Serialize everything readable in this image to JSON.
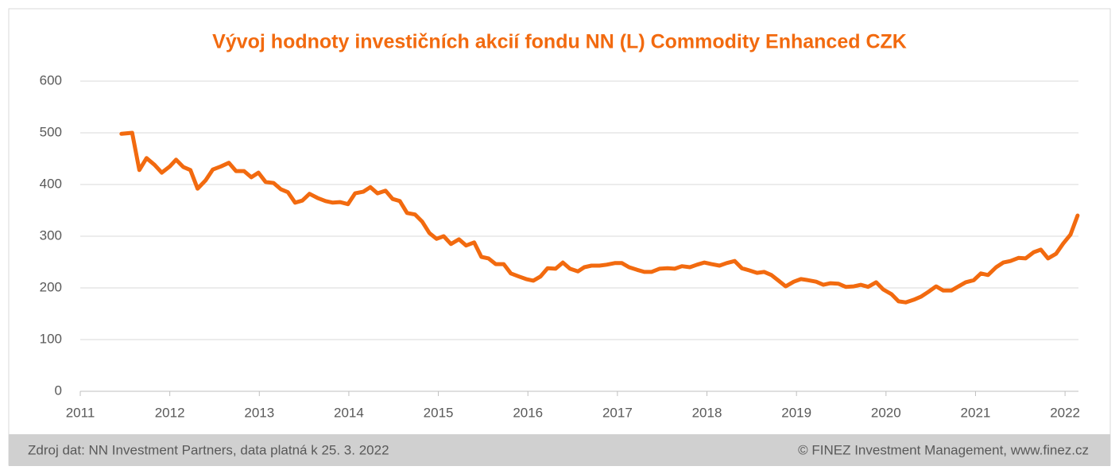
{
  "chart_data": {
    "type": "line",
    "title": "Vývoj hodnoty investičních akcií fondu NN (L) Commodity Enhanced CZK",
    "x": [
      2011.46,
      2011.58,
      2011.66,
      2011.74,
      2011.83,
      2011.91,
      2012.0,
      2012.07,
      2012.15,
      2012.23,
      2012.31,
      2012.4,
      2012.48,
      2012.57,
      2012.66,
      2012.74,
      2012.83,
      2012.91,
      2012.99,
      2013.07,
      2013.16,
      2013.24,
      2013.32,
      2013.4,
      2013.48,
      2013.56,
      2013.65,
      2013.74,
      2013.82,
      2013.9,
      2013.99,
      2014.07,
      2014.16,
      2014.24,
      2014.32,
      2014.41,
      2014.49,
      2014.57,
      2014.65,
      2014.74,
      2014.82,
      2014.9,
      2014.98,
      2015.06,
      2015.14,
      2015.23,
      2015.31,
      2015.4,
      2015.48,
      2015.56,
      2015.64,
      2015.73,
      2015.81,
      2015.9,
      2015.98,
      2016.06,
      2016.14,
      2016.22,
      2016.31,
      2016.39,
      2016.47,
      2016.56,
      2016.63,
      2016.71,
      2016.8,
      2016.88,
      2016.97,
      2017.05,
      2017.13,
      2017.22,
      2017.3,
      2017.38,
      2017.47,
      2017.56,
      2017.64,
      2017.72,
      2017.81,
      2017.89,
      2017.97,
      2018.05,
      2018.14,
      2018.22,
      2018.31,
      2018.39,
      2018.47,
      2018.56,
      2018.64,
      2018.72,
      2018.8,
      2018.88,
      2018.97,
      2019.05,
      2019.13,
      2019.22,
      2019.3,
      2019.38,
      2019.47,
      2019.55,
      2019.64,
      2019.72,
      2019.8,
      2019.89,
      2019.97,
      2020.06,
      2020.14,
      2020.22,
      2020.31,
      2020.39,
      2020.47,
      2020.56,
      2020.64,
      2020.73,
      2020.81,
      2020.89,
      2020.98,
      2021.06,
      2021.14,
      2021.23,
      2021.31,
      2021.39,
      2021.48,
      2021.56,
      2021.65,
      2021.73,
      2021.81,
      2021.9,
      2021.98,
      2022.06,
      2022.14
    ],
    "values": [
      498,
      500,
      428,
      451,
      438,
      423,
      435,
      448,
      434,
      428,
      392,
      408,
      429,
      435,
      442,
      426,
      426,
      414,
      423,
      405,
      403,
      391,
      385,
      365,
      369,
      382,
      374,
      368,
      365,
      366,
      362,
      383,
      386,
      395,
      383,
      388,
      372,
      368,
      345,
      342,
      328,
      306,
      295,
      300,
      285,
      294,
      282,
      288,
      260,
      257,
      246,
      246,
      228,
      222,
      217,
      214,
      222,
      238,
      237,
      249,
      237,
      232,
      240,
      243,
      243,
      245,
      248,
      248,
      240,
      235,
      231,
      231,
      237,
      238,
      237,
      242,
      240,
      245,
      249,
      246,
      243,
      248,
      252,
      238,
      234,
      229,
      231,
      225,
      214,
      203,
      212,
      217,
      215,
      212,
      206,
      209,
      208,
      202,
      203,
      206,
      202,
      211,
      197,
      188,
      174,
      172,
      177,
      183,
      192,
      203,
      195,
      195,
      203,
      211,
      215,
      228,
      225,
      240,
      249,
      252,
      258,
      257,
      269,
      274,
      257,
      266,
      286,
      303,
      340
    ],
    "color": "#f26a0f",
    "xlim": [
      2011,
      2022.15
    ],
    "xticks": [
      2011,
      2012,
      2013,
      2014,
      2015,
      2016,
      2017,
      2018,
      2019,
      2020,
      2021,
      2022
    ],
    "ylim": [
      0,
      600
    ],
    "yticks": [
      0,
      100,
      200,
      300,
      400,
      500,
      600
    ],
    "grid": true
  },
  "footer": {
    "source": "Zdroj dat: NN Investment Partners, data platná k 25. 3. 2022",
    "credit": "© FINEZ Investment Management, www.finez.cz"
  }
}
